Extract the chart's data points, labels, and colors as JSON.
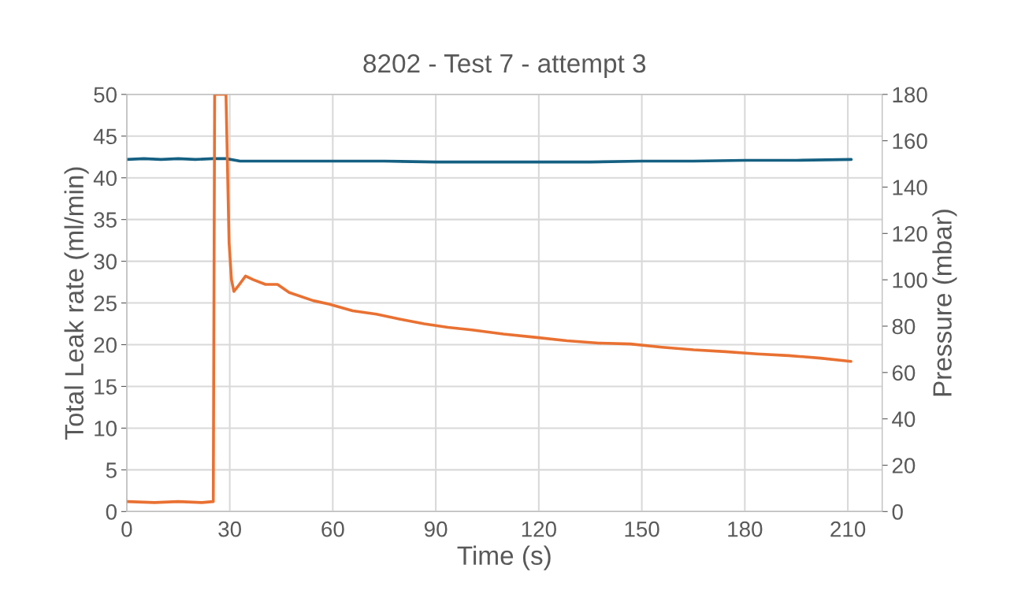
{
  "chart_data": {
    "type": "line",
    "title": "8202 - Test 7 - attempt 3",
    "xlabel": "Time (s)",
    "ylabel": "Total Leak rate (ml/min)",
    "y2label": "Pressure (mbar)",
    "xlim": [
      0,
      220
    ],
    "xticks": [
      0,
      30,
      60,
      90,
      120,
      150,
      180,
      210
    ],
    "ylim": [
      0,
      50
    ],
    "yticks": [
      0,
      5,
      10,
      15,
      20,
      25,
      30,
      35,
      40,
      45,
      50
    ],
    "y2lim": [
      0,
      180
    ],
    "y2ticks": [
      0,
      20,
      40,
      60,
      80,
      100,
      120,
      140,
      160,
      180
    ],
    "grid": true,
    "line_style": "solid",
    "marker": "none",
    "series": [
      {
        "color": "#156082",
        "x": [
          0,
          5,
          10,
          15,
          20,
          25,
          29,
          33,
          45,
          60,
          75,
          90,
          105,
          120,
          135,
          150,
          165,
          180,
          195,
          211
        ],
        "values": [
          42.2,
          42.3,
          42.2,
          42.3,
          42.2,
          42.3,
          42.3,
          42.0,
          42.0,
          42.0,
          42.0,
          41.9,
          41.9,
          41.9,
          41.9,
          42.0,
          42.0,
          42.1,
          42.1,
          42.2
        ]
      },
      {
        "color": "#e97132",
        "axis": "y2",
        "x": [
          0,
          8.1,
          15,
          21.9,
          25.2,
          25.6,
          28.9,
          29.8,
          30.5,
          31.2,
          32.3,
          34.6,
          36.9,
          40.4,
          43.9,
          47.3,
          54.3,
          58.9,
          65.8,
          72.7,
          79.7,
          86.6,
          93.5,
          100.5,
          109.7,
          118.9,
          128.2,
          137.4,
          146.7,
          155.9,
          165.1,
          174.4,
          183.6,
          192.8,
          202.1,
          210.9
        ],
        "values": [
          4.3,
          3.9,
          4.3,
          3.9,
          4.3,
          180,
          180,
          116,
          100,
          95,
          97,
          101.6,
          100,
          98,
          98,
          94.5,
          91,
          89.5,
          86.6,
          85.2,
          83,
          81,
          79.5,
          78.4,
          76.6,
          75.2,
          73.7,
          72.7,
          72.3,
          70.9,
          69.8,
          69,
          68,
          67.3,
          66.2,
          64.8
        ]
      }
    ]
  }
}
